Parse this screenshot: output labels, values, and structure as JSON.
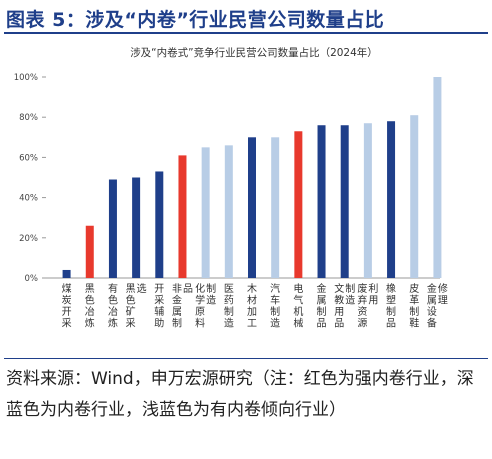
{
  "figure": {
    "title": "图表 5：涉及“内卷”行业民营公司数量占比",
    "source_note": "资料来源：Wind，申万宏源研究（注：红色为强内卷行业，深蓝色为内卷行业，浅蓝色为有内卷倾向行业）"
  },
  "colors": {
    "strong": "#e8392d",
    "involution": "#1f3f8a",
    "tendency": "#b8cde6",
    "title": "#1f3f8a"
  },
  "chart_data": {
    "type": "bar",
    "title": "涉及“内卷式”竞争行业民营公司数量占比（2024年）",
    "xlabel": "",
    "ylabel": "",
    "ylim": [
      0,
      100
    ],
    "yticks": [
      "0%",
      "20%",
      "40%",
      "60%",
      "80%",
      "100%"
    ],
    "categories": [
      "煤炭开采",
      "黑色冶炼",
      "有色冶炼",
      "黑色矿采选",
      "开采辅助",
      "非金属制品",
      "化学原料制造",
      "医药制造",
      "木材加工",
      "汽车制造",
      "电气机械",
      "金属制品",
      "文教用品制造",
      "废弃资源利用",
      "橡塑制品",
      "皮革制鞋",
      "金属设备修理"
    ],
    "values": [
      4,
      26,
      49,
      50,
      53,
      61,
      65,
      66,
      70,
      70,
      73,
      76,
      76,
      77,
      78,
      81,
      100
    ],
    "bar_class": [
      "involution",
      "strong",
      "involution",
      "involution",
      "involution",
      "strong",
      "tendency",
      "tendency",
      "involution",
      "tendency",
      "strong",
      "involution",
      "involution",
      "tendency",
      "involution",
      "tendency",
      "tendency"
    ],
    "grid": false,
    "legend": "none"
  }
}
